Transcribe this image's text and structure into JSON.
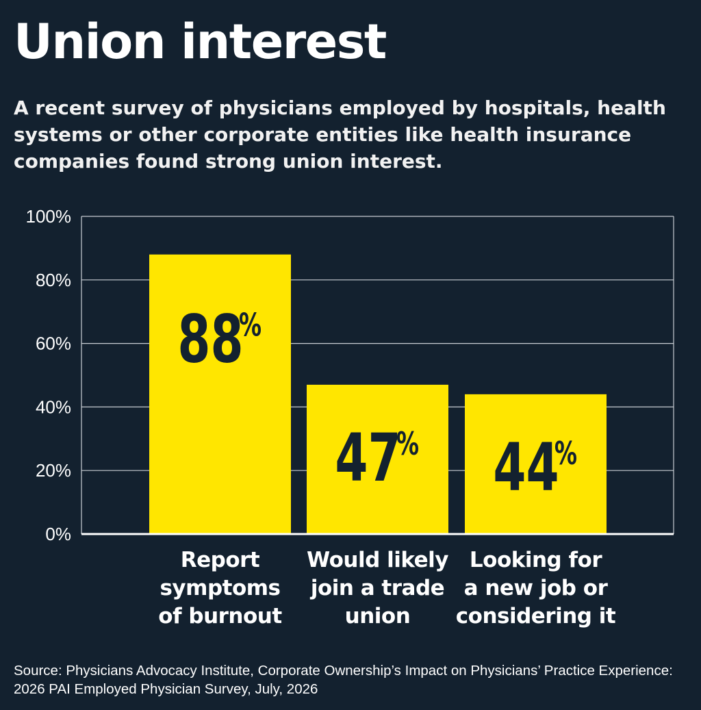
{
  "title": "Union interest",
  "subtitle": "A recent survey of physicians employed by hospitals, health systems or other corporate entities like health insurance companies found strong union interest.",
  "source": "Source: Physicians Advocacy Institute, Corporate Ownership’s Impact on Physicians’ Practice Experience: 2026 PAI Employed Physician Survey, July, 2026",
  "colors": {
    "background": "#13212f",
    "bar": "#ffe600",
    "bar_label": "#13212f",
    "grid": "#c9ced4",
    "text": "#ffffff"
  },
  "chart_data": {
    "type": "bar",
    "categories": [
      "Report symptoms of burnout",
      "Would likely join a trade union",
      "Looking for a new job or considering it"
    ],
    "category_lines": [
      [
        "Report",
        "symptoms",
        "of burnout"
      ],
      [
        "Would likely",
        "join a trade",
        "union"
      ],
      [
        "Looking for",
        "a new job or",
        "considering it"
      ]
    ],
    "values": [
      88,
      47,
      44
    ],
    "value_labels": [
      "88",
      "47",
      "44"
    ],
    "value_suffix": "%",
    "ylim": [
      0,
      100
    ],
    "yticks": [
      0,
      20,
      40,
      60,
      80,
      100
    ],
    "ytick_labels": [
      "0%",
      "20%",
      "40%",
      "60%",
      "80%",
      "100%"
    ],
    "grid": true,
    "legend": "none"
  }
}
